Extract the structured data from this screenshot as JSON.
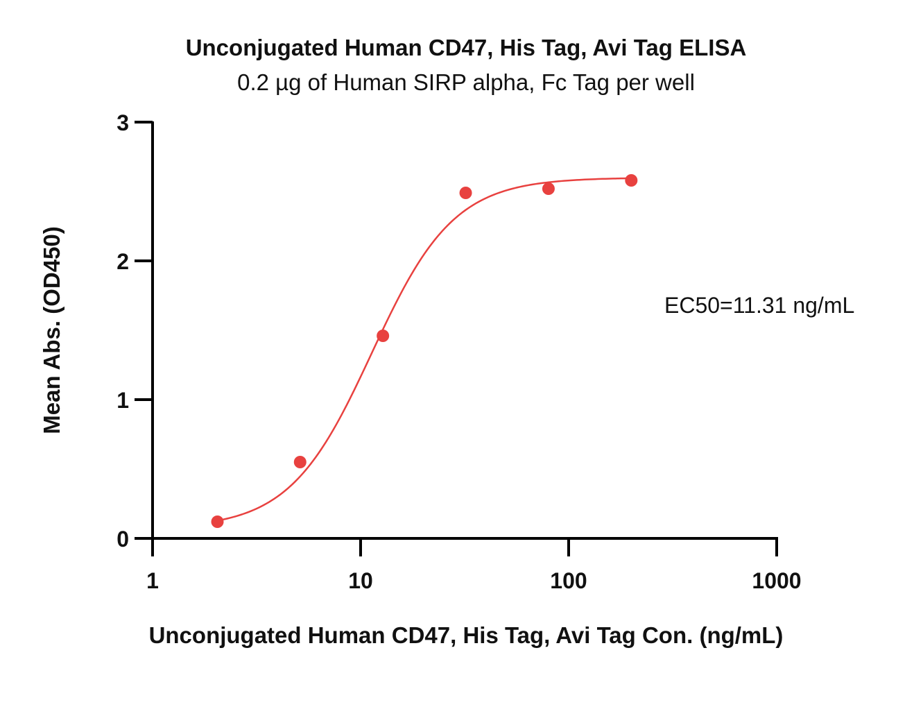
{
  "chart_data": {
    "type": "scatter",
    "title": "Unconjugated Human CD47, His Tag, Avi Tag ELISA",
    "subtitle": "0.2 µg of Human SIRP alpha, Fc Tag per well",
    "xlabel": "Unconjugated Human CD47, His Tag, Avi Tag Con. (ng/mL)",
    "ylabel": "Mean Abs. (OD450)",
    "xscale": "log",
    "xlim": [
      1,
      1000
    ],
    "ylim": [
      0,
      3
    ],
    "xticks": [
      1,
      10,
      100,
      1000
    ],
    "xtick_labels": [
      "1",
      "10",
      "100",
      "1000"
    ],
    "yticks": [
      0,
      1,
      2,
      3
    ],
    "ytick_labels": [
      "0",
      "1",
      "2",
      "3"
    ],
    "grid": false,
    "color": "#e8413f",
    "series": [
      {
        "x": [
          2.05,
          5.12,
          12.8,
          32.0,
          80.0,
          200.0
        ],
        "y": [
          0.12,
          0.55,
          1.46,
          2.49,
          2.52,
          2.58
        ]
      }
    ],
    "fit": {
      "model": "4PL",
      "bottom": 0.07,
      "top": 2.6,
      "ec50": 11.31,
      "hill": 2.2
    },
    "annotation": "EC50=11.31 ng/mL"
  }
}
